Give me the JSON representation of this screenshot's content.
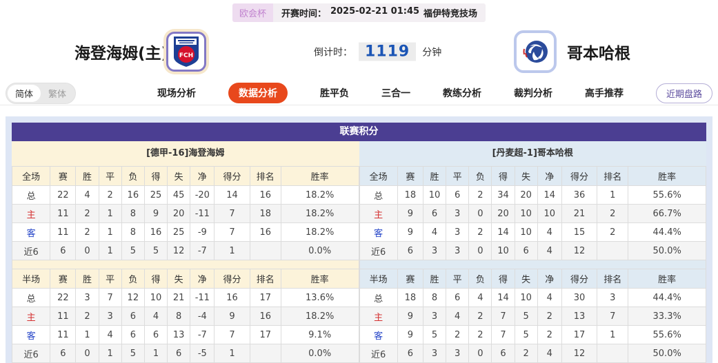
{
  "colors": {
    "accent_purple_header": "#4b3e92",
    "accent_orange_tab": "#e8481c",
    "home_tint": "#fcf3da",
    "away_tint": "#dfeaf3",
    "home_row_label": "#d43030",
    "away_row_label": "#2545c8",
    "countdown_blue": "#1b55b5",
    "badge_bg": "#eedcf0",
    "badge_text": "#c183cf",
    "trend_btn_text": "#5b4b9e"
  },
  "top_bar": {
    "league_badge": "欧会杯",
    "kickoff_label": "开赛时间：",
    "kickoff_time": "2025-02-21 01:45",
    "venue": "福伊特竞技场"
  },
  "match_header": {
    "home_name": "海登海姆(主)",
    "home_logo_text": "FCH",
    "away_name": "哥本哈根",
    "countdown_label": "倒计时：",
    "countdown_value": "1119",
    "countdown_unit": "分钟"
  },
  "nav": {
    "lang_simplified": "简体",
    "lang_traditional": "繁体",
    "tabs": [
      {
        "label": "现场分析",
        "active": false
      },
      {
        "label": "数据分析",
        "active": true
      },
      {
        "label": "胜平负",
        "active": false
      },
      {
        "label": "三合一",
        "active": false
      },
      {
        "label": "教练分析",
        "active": false
      },
      {
        "label": "裁判分析",
        "active": false
      },
      {
        "label": "高手推荐",
        "active": false
      }
    ],
    "recent_trend_button": "近期盘路"
  },
  "league_table": {
    "title": "联赛积分",
    "home_header": "[德甲-16]海登海姆",
    "away_header": "[丹麦超-1]哥本哈根",
    "columns_full": [
      "全场",
      "赛",
      "胜",
      "平",
      "负",
      "得",
      "失",
      "净",
      "得分",
      "排名",
      "胜率"
    ],
    "columns_half": [
      "半场",
      "赛",
      "胜",
      "平",
      "负",
      "得",
      "失",
      "净",
      "得分",
      "排名",
      "胜率"
    ],
    "home_full_rows": [
      {
        "label": "总",
        "label_class": "",
        "values": [
          "22",
          "4",
          "2",
          "16",
          "25",
          "45",
          "-20",
          "14",
          "16",
          "18.2%"
        ]
      },
      {
        "label": "主",
        "label_class": "rl-home",
        "values": [
          "11",
          "2",
          "1",
          "8",
          "9",
          "20",
          "-11",
          "7",
          "18",
          "18.2%"
        ]
      },
      {
        "label": "客",
        "label_class": "rl-away",
        "values": [
          "11",
          "2",
          "1",
          "8",
          "16",
          "25",
          "-9",
          "7",
          "16",
          "18.2%"
        ]
      },
      {
        "label": "近6",
        "label_class": "",
        "values": [
          "6",
          "0",
          "1",
          "5",
          "5",
          "12",
          "-7",
          "1",
          "",
          "0.0%"
        ]
      }
    ],
    "home_half_rows": [
      {
        "label": "总",
        "label_class": "",
        "values": [
          "22",
          "3",
          "7",
          "12",
          "10",
          "21",
          "-11",
          "16",
          "17",
          "13.6%"
        ]
      },
      {
        "label": "主",
        "label_class": "rl-home",
        "values": [
          "11",
          "2",
          "3",
          "6",
          "4",
          "8",
          "-4",
          "9",
          "16",
          "18.2%"
        ]
      },
      {
        "label": "客",
        "label_class": "rl-away",
        "values": [
          "11",
          "1",
          "4",
          "6",
          "6",
          "13",
          "-7",
          "7",
          "17",
          "9.1%"
        ]
      },
      {
        "label": "近6",
        "label_class": "",
        "values": [
          "6",
          "0",
          "1",
          "5",
          "1",
          "6",
          "-5",
          "1",
          "",
          "0.0%"
        ]
      }
    ],
    "away_full_rows": [
      {
        "label": "总",
        "label_class": "",
        "values": [
          "18",
          "10",
          "6",
          "2",
          "34",
          "20",
          "14",
          "36",
          "1",
          "55.6%"
        ]
      },
      {
        "label": "主",
        "label_class": "rl-home",
        "values": [
          "9",
          "6",
          "3",
          "0",
          "20",
          "10",
          "10",
          "21",
          "2",
          "66.7%"
        ]
      },
      {
        "label": "客",
        "label_class": "rl-away",
        "values": [
          "9",
          "4",
          "3",
          "2",
          "14",
          "10",
          "4",
          "15",
          "2",
          "44.4%"
        ]
      },
      {
        "label": "近6",
        "label_class": "",
        "values": [
          "6",
          "3",
          "3",
          "0",
          "10",
          "6",
          "4",
          "12",
          "",
          "50.0%"
        ]
      }
    ],
    "away_half_rows": [
      {
        "label": "总",
        "label_class": "",
        "values": [
          "18",
          "8",
          "6",
          "4",
          "14",
          "10",
          "4",
          "30",
          "3",
          "44.4%"
        ]
      },
      {
        "label": "主",
        "label_class": "rl-home",
        "values": [
          "9",
          "3",
          "4",
          "2",
          "7",
          "5",
          "2",
          "13",
          "7",
          "33.3%"
        ]
      },
      {
        "label": "客",
        "label_class": "rl-away",
        "values": [
          "9",
          "5",
          "2",
          "2",
          "7",
          "5",
          "2",
          "17",
          "1",
          "55.6%"
        ]
      },
      {
        "label": "近6",
        "label_class": "",
        "values": [
          "6",
          "3",
          "3",
          "0",
          "6",
          "2",
          "4",
          "12",
          "",
          "50.0%"
        ]
      }
    ]
  }
}
